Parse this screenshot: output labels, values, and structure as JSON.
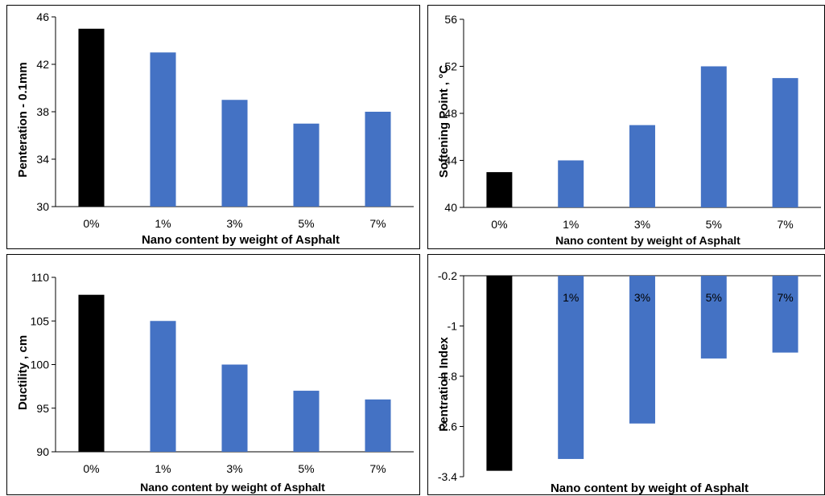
{
  "chart_data": [
    {
      "type": "bar",
      "categories": [
        "0%",
        "1%",
        "3%",
        "5%",
        "7%"
      ],
      "values": [
        45,
        43,
        39,
        37,
        38
      ],
      "ylabel": "Penteration - 0.1mm",
      "xlabel": "Nano content by weight of Asphalt",
      "ylim": [
        30,
        46
      ],
      "yticks": [
        "30",
        "34",
        "38",
        "42",
        "46"
      ],
      "colors": [
        "#000000",
        "#4472C4",
        "#4472C4",
        "#4472C4",
        "#4472C4"
      ],
      "grid": false
    },
    {
      "type": "bar",
      "categories": [
        "0%",
        "1%",
        "3%",
        "5%",
        "7%"
      ],
      "values": [
        43,
        44,
        47,
        52,
        51
      ],
      "ylabel": "Softening Point , °C",
      "xlabel": "Nano content by weight of Asphalt",
      "ylim": [
        40,
        56
      ],
      "yticks": [
        "40",
        "44",
        "48",
        "52",
        "56"
      ],
      "colors": [
        "#000000",
        "#4472C4",
        "#4472C4",
        "#4472C4",
        "#4472C4"
      ],
      "grid": false
    },
    {
      "type": "bar",
      "categories": [
        "0%",
        "1%",
        "3%",
        "5%",
        "7%"
      ],
      "values": [
        108,
        105,
        100,
        97,
        96
      ],
      "ylabel": "Ductility , cm",
      "xlabel": "Nano content by weight of Asphalt",
      "ylim": [
        90,
        110
      ],
      "yticks": [
        "90",
        "95",
        "100",
        "105",
        "110"
      ],
      "colors": [
        "#000000",
        "#4472C4",
        "#4472C4",
        "#4472C4",
        "#4472C4"
      ],
      "grid": false
    },
    {
      "type": "bar",
      "categories": [
        "0%",
        "1%",
        "3%",
        "5%",
        "7%"
      ],
      "values": [
        -3.3,
        -3.1,
        -2.5,
        -1.4,
        -1.3
      ],
      "ylabel": "Pentration Index",
      "xlabel": "Nano content by weight of Asphalt",
      "ylim": [
        -3.4,
        0
      ],
      "yticks": [
        "-3.4",
        "-2.6",
        "-1.8",
        "-1",
        "-0.2"
      ],
      "colors": [
        "#000000",
        "#4472C4",
        "#4472C4",
        "#4472C4",
        "#4472C4"
      ],
      "grid": false
    }
  ]
}
